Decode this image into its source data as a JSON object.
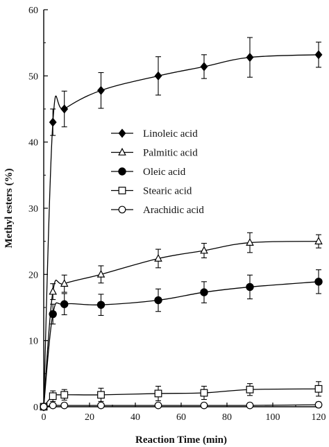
{
  "chart_data": {
    "type": "line",
    "title": "",
    "xlabel": "Reaction Time (min)",
    "ylabel": "Methyl esters (%)",
    "xlim": [
      0,
      120
    ],
    "ylim": [
      0,
      60
    ],
    "x_ticks": [
      0,
      20,
      40,
      60,
      80,
      100,
      120
    ],
    "y_ticks": [
      0,
      10,
      20,
      30,
      40,
      50,
      60
    ],
    "grid": false,
    "legend_position": "center-left",
    "x": [
      0,
      4,
      9,
      25,
      50,
      70,
      90,
      120
    ],
    "series": [
      {
        "name": "Linoleic acid",
        "marker": "filled-diamond",
        "values": [
          0,
          43.0,
          45.0,
          47.8,
          50.0,
          51.4,
          52.8,
          53.2
        ],
        "errors": [
          0,
          2.0,
          2.7,
          2.7,
          2.9,
          1.8,
          3.0,
          1.9
        ]
      },
      {
        "name": "Palmitic acid",
        "marker": "open-triangle",
        "values": [
          0,
          17.4,
          18.6,
          20.0,
          22.4,
          23.6,
          24.8,
          25.0
        ],
        "errors": [
          0,
          1.2,
          1.3,
          1.3,
          1.4,
          1.1,
          1.5,
          1.0
        ]
      },
      {
        "name": "Oleic acid",
        "marker": "filled-circle",
        "values": [
          0,
          14.0,
          15.5,
          15.4,
          16.1,
          17.3,
          18.1,
          18.9
        ],
        "errors": [
          0,
          1.5,
          1.6,
          1.6,
          1.7,
          1.6,
          1.8,
          1.8
        ]
      },
      {
        "name": "Stearic acid",
        "marker": "open-square",
        "values": [
          0,
          1.6,
          1.8,
          1.8,
          2.0,
          2.1,
          2.6,
          2.7
        ],
        "errors": [
          0,
          0.8,
          0.8,
          1.0,
          1.1,
          1.0,
          0.9,
          1.1
        ]
      },
      {
        "name": "Arachidic acid",
        "marker": "open-circle",
        "values": [
          0,
          0.2,
          0.2,
          0.2,
          0.2,
          0.2,
          0.2,
          0.3
        ],
        "errors": [
          0,
          0.1,
          0.1,
          0.1,
          0.1,
          0.1,
          0.1,
          0.4
        ]
      }
    ]
  }
}
